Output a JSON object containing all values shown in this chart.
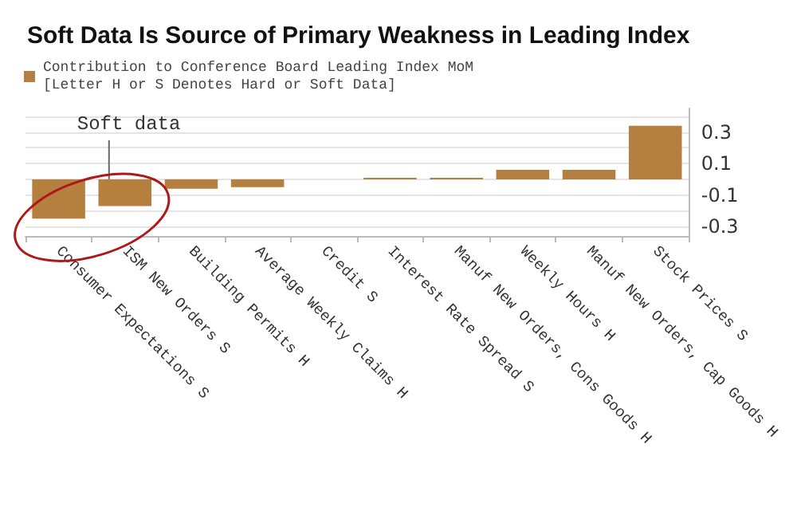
{
  "chart_data": {
    "type": "bar",
    "title": "Soft Data Is Source of Primary Weakness in Leading Index",
    "categories": [
      "Consumer Expectations S",
      "ISM New Orders S",
      "Building Permits H",
      "Average Weekly Claims H",
      "Credit S",
      "Interest Rate Spread S",
      "Manuf New Orders, Cons Goods H",
      "Weekly Hours H",
      "Manuf New Orders, Cap Goods H",
      "Stock Prices S"
    ],
    "series": [
      {
        "name": "Contribution to Conference Board Leading Index MoM\n[Letter H or S Denotes Hard or Soft Data]",
        "color": "#b5803f",
        "values": [
          -0.25,
          -0.17,
          -0.06,
          -0.05,
          0,
          0.01,
          0.01,
          0.06,
          0.06,
          0.34
        ]
      }
    ],
    "ylim": [
      -0.36,
      0.45
    ],
    "yticks": [
      {
        "value": -0.3,
        "label": "-0.3"
      },
      {
        "value": -0.2,
        "label": null
      },
      {
        "value": -0.1,
        "label": "-0.1"
      },
      {
        "value": 0,
        "label": null
      },
      {
        "value": 0.1,
        "label": "0.1"
      },
      {
        "value": 0.2,
        "label": null
      },
      {
        "value": 0.3,
        "label": "0.3"
      },
      {
        "value": 0.4,
        "label": null
      }
    ],
    "grid": "y",
    "legend": "top left",
    "annotations": [
      {
        "text": "Soft data",
        "x": "ISM New Orders S",
        "y": 0
      }
    ]
  }
}
